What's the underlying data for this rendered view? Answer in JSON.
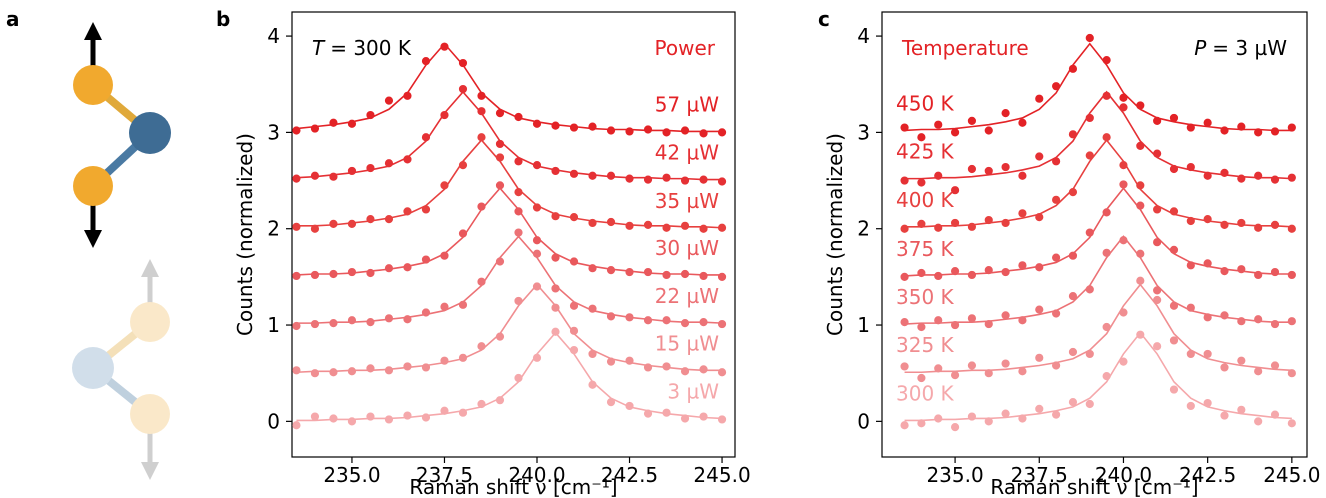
{
  "panel_labels": [
    "a",
    "b",
    "c"
  ],
  "chart_data": [
    {
      "type": "line",
      "annotation_left": {
        "symbol": "T",
        "text": "= 300 K"
      },
      "annotation_right": {
        "text": "Power"
      },
      "x_label": "Raman shift ν [cm⁻¹]",
      "y_label": "Counts (normalized)",
      "xlim": [
        233.38,
        245.35
      ],
      "ylim": [
        -0.37,
        4.25
      ],
      "xticks": [
        {
          "value": 235,
          "label": "235.0"
        },
        237.5,
        {
          "value": 240,
          "label": "240.0"
        },
        242.5,
        {
          "value": 245,
          "label": "245.0"
        }
      ],
      "yticks": [
        0,
        1,
        2,
        3,
        4
      ],
      "label_side": "right",
      "x": [
        233.5,
        234,
        234.5,
        235,
        235.5,
        236,
        236.5,
        237,
        237.5,
        238,
        238.5,
        239,
        239.5,
        240,
        240.5,
        241,
        241.5,
        242,
        242.5,
        243,
        243.5,
        244,
        244.5,
        245
      ],
      "series": [
        {
          "name": "3 µW",
          "color": "#f5a8ab",
          "values": [
            -0.04,
            0.05,
            0.03,
            0.0,
            0.05,
            0.02,
            0.06,
            0.04,
            0.11,
            0.09,
            0.18,
            0.22,
            0.45,
            0.66,
            0.93,
            0.74,
            0.38,
            0.2,
            0.16,
            0.08,
            0.09,
            0.03,
            0.05,
            0.02
          ],
          "fit": [
            0.01,
            0.01,
            0.02,
            0.02,
            0.03,
            0.03,
            0.04,
            0.06,
            0.08,
            0.11,
            0.15,
            0.24,
            0.41,
            0.7,
            0.92,
            0.7,
            0.41,
            0.24,
            0.15,
            0.11,
            0.08,
            0.06,
            0.04,
            0.03
          ]
        },
        {
          "name": "15 µW",
          "color": "#f08e91",
          "values": [
            0.53,
            0.5,
            0.51,
            0.52,
            0.55,
            0.53,
            0.57,
            0.56,
            0.63,
            0.66,
            0.78,
            0.88,
            1.25,
            1.4,
            1.18,
            0.94,
            0.7,
            0.62,
            0.63,
            0.56,
            0.57,
            0.52,
            0.54,
            0.51
          ],
          "fit": [
            0.51,
            0.52,
            0.52,
            0.53,
            0.53,
            0.54,
            0.56,
            0.58,
            0.61,
            0.65,
            0.74,
            0.91,
            1.2,
            1.42,
            1.2,
            0.91,
            0.74,
            0.65,
            0.61,
            0.58,
            0.56,
            0.54,
            0.53,
            0.53
          ]
        },
        {
          "name": "22 µW",
          "color": "#ec7276",
          "values": [
            0.99,
            1.01,
            1.02,
            1.05,
            1.03,
            1.07,
            1.06,
            1.13,
            1.19,
            1.21,
            1.45,
            1.66,
            1.96,
            1.74,
            1.38,
            1.2,
            1.17,
            1.09,
            1.08,
            1.05,
            1.05,
            1.02,
            1.03,
            1.01
          ],
          "fit": [
            1.02,
            1.02,
            1.03,
            1.03,
            1.04,
            1.06,
            1.08,
            1.11,
            1.15,
            1.24,
            1.41,
            1.7,
            1.92,
            1.7,
            1.41,
            1.24,
            1.15,
            1.11,
            1.08,
            1.06,
            1.04,
            1.03,
            1.03,
            1.02
          ]
        },
        {
          "name": "30 µW",
          "color": "#e9585c",
          "values": [
            1.51,
            1.52,
            1.53,
            1.55,
            1.54,
            1.59,
            1.6,
            1.68,
            1.72,
            1.95,
            2.23,
            2.45,
            2.18,
            1.88,
            1.7,
            1.66,
            1.59,
            1.57,
            1.55,
            1.55,
            1.52,
            1.53,
            1.51,
            1.5
          ],
          "fit": [
            1.52,
            1.53,
            1.53,
            1.54,
            1.56,
            1.58,
            1.61,
            1.65,
            1.74,
            1.91,
            2.2,
            2.42,
            2.2,
            1.91,
            1.74,
            1.65,
            1.61,
            1.58,
            1.56,
            1.54,
            1.53,
            1.53,
            1.52,
            1.52
          ]
        },
        {
          "name": "35 µW",
          "color": "#e7403f",
          "values": [
            2.02,
            2.0,
            2.05,
            2.05,
            2.1,
            2.1,
            2.18,
            2.2,
            2.45,
            2.66,
            2.95,
            2.74,
            2.38,
            2.22,
            2.13,
            2.12,
            2.06,
            2.07,
            2.03,
            2.04,
            2.01,
            2.03,
            2.0,
            2.01
          ],
          "fit": [
            2.03,
            2.03,
            2.04,
            2.06,
            2.08,
            2.11,
            2.15,
            2.24,
            2.41,
            2.7,
            2.92,
            2.7,
            2.41,
            2.24,
            2.15,
            2.11,
            2.08,
            2.06,
            2.04,
            2.03,
            2.03,
            2.02,
            2.02,
            2.01
          ]
        },
        {
          "name": "42 µW",
          "color": "#e53034",
          "values": [
            2.52,
            2.55,
            2.54,
            2.6,
            2.63,
            2.68,
            2.72,
            2.95,
            3.18,
            3.45,
            3.22,
            2.88,
            2.7,
            2.66,
            2.6,
            2.57,
            2.55,
            2.55,
            2.52,
            2.51,
            2.53,
            2.5,
            2.51,
            2.49
          ],
          "fit": [
            2.53,
            2.54,
            2.56,
            2.58,
            2.61,
            2.65,
            2.74,
            2.91,
            3.2,
            3.42,
            3.2,
            2.91,
            2.74,
            2.65,
            2.61,
            2.58,
            2.56,
            2.54,
            2.53,
            2.53,
            2.52,
            2.52,
            2.51,
            2.51
          ]
        },
        {
          "name": "57 µW",
          "color": "#e32226",
          "values": [
            3.02,
            3.04,
            3.1,
            3.09,
            3.18,
            3.33,
            3.38,
            3.74,
            3.89,
            3.72,
            3.38,
            3.2,
            3.16,
            3.09,
            3.07,
            3.05,
            3.06,
            3.02,
            3.01,
            3.03,
            3.0,
            3.02,
            2.99,
            3.0
          ],
          "fit": [
            3.04,
            3.06,
            3.08,
            3.11,
            3.15,
            3.24,
            3.41,
            3.7,
            3.92,
            3.7,
            3.41,
            3.24,
            3.15,
            3.11,
            3.08,
            3.06,
            3.04,
            3.03,
            3.03,
            3.02,
            3.02,
            3.01,
            3.01,
            3.01
          ]
        }
      ]
    },
    {
      "type": "line",
      "annotation_left": {
        "text": "Temperature"
      },
      "annotation_right": {
        "symbol": "P",
        "text": "= 3 µW"
      },
      "x_label": "Raman shift ν [cm⁻¹]",
      "y_label": "Counts (normalized)",
      "xlim": [
        232.83,
        245.45
      ],
      "ylim": [
        -0.37,
        4.25
      ],
      "xticks": [
        {
          "value": 235,
          "label": "235.0"
        },
        237.5,
        {
          "value": 240,
          "label": "240.0"
        },
        242.5,
        {
          "value": 245,
          "label": "245.0"
        }
      ],
      "yticks": [
        0,
        1,
        2,
        3,
        4
      ],
      "label_side": "left",
      "x": [
        233.5,
        234,
        234.5,
        235,
        235.5,
        236,
        236.5,
        237,
        237.5,
        238,
        238.5,
        239,
        239.5,
        240,
        240.5,
        241,
        241.5,
        242,
        242.5,
        243,
        243.5,
        244,
        244.5,
        245
      ],
      "series": [
        {
          "name": "300 K",
          "color": "#f5a8ab",
          "values": [
            -0.04,
            -0.02,
            0.03,
            -0.06,
            0.05,
            0.0,
            0.08,
            0.03,
            0.13,
            0.07,
            0.2,
            0.18,
            0.47,
            0.62,
            0.9,
            0.78,
            0.33,
            0.16,
            0.19,
            0.06,
            0.12,
            0.0,
            0.07,
            -0.02
          ],
          "fit": [
            0.01,
            0.01,
            0.02,
            0.02,
            0.03,
            0.03,
            0.04,
            0.06,
            0.08,
            0.11,
            0.15,
            0.24,
            0.41,
            0.7,
            0.92,
            0.7,
            0.41,
            0.24,
            0.15,
            0.11,
            0.08,
            0.06,
            0.04,
            0.03
          ]
        },
        {
          "name": "325 K",
          "color": "#f08e91",
          "values": [
            0.57,
            0.45,
            0.55,
            0.48,
            0.58,
            0.5,
            0.6,
            0.52,
            0.66,
            0.58,
            0.72,
            0.7,
            0.98,
            1.13,
            1.46,
            1.26,
            0.84,
            0.7,
            0.7,
            0.56,
            0.63,
            0.52,
            0.58,
            0.5
          ],
          "fit": [
            0.51,
            0.51,
            0.52,
            0.52,
            0.53,
            0.53,
            0.54,
            0.56,
            0.58,
            0.61,
            0.65,
            0.74,
            0.91,
            1.2,
            1.42,
            1.2,
            0.91,
            0.74,
            0.65,
            0.61,
            0.58,
            0.56,
            0.54,
            0.53
          ]
        },
        {
          "name": "350 K",
          "color": "#ec7276",
          "values": [
            1.03,
            0.98,
            1.05,
            1.0,
            1.07,
            1.01,
            1.1,
            1.05,
            1.16,
            1.12,
            1.3,
            1.37,
            1.75,
            1.88,
            1.74,
            1.36,
            1.2,
            1.18,
            1.08,
            1.1,
            1.04,
            1.06,
            1.01,
            1.04
          ],
          "fit": [
            1.01,
            1.02,
            1.02,
            1.03,
            1.03,
            1.04,
            1.06,
            1.08,
            1.11,
            1.15,
            1.24,
            1.41,
            1.7,
            1.92,
            1.7,
            1.41,
            1.24,
            1.15,
            1.11,
            1.08,
            1.06,
            1.04,
            1.03,
            1.03
          ]
        },
        {
          "name": "375 K",
          "color": "#e9585c",
          "values": [
            1.5,
            1.54,
            1.51,
            1.56,
            1.52,
            1.57,
            1.55,
            1.62,
            1.6,
            1.7,
            1.72,
            1.96,
            2.17,
            2.46,
            2.24,
            1.86,
            1.78,
            1.62,
            1.64,
            1.56,
            1.58,
            1.52,
            1.55,
            1.52
          ],
          "fit": [
            1.51,
            1.52,
            1.52,
            1.53,
            1.53,
            1.54,
            1.56,
            1.58,
            1.61,
            1.65,
            1.74,
            1.91,
            2.2,
            2.42,
            2.2,
            1.91,
            1.74,
            1.65,
            1.61,
            1.58,
            1.56,
            1.54,
            1.53,
            1.53
          ]
        },
        {
          "name": "400 K",
          "color": "#e7403f",
          "values": [
            2.0,
            2.05,
            2.01,
            2.06,
            2.02,
            2.09,
            2.06,
            2.16,
            2.12,
            2.3,
            2.38,
            2.76,
            2.95,
            2.66,
            2.45,
            2.2,
            2.18,
            2.08,
            2.1,
            2.04,
            2.06,
            2.01,
            2.04,
            2.0
          ],
          "fit": [
            2.02,
            2.02,
            2.03,
            2.03,
            2.04,
            2.06,
            2.08,
            2.11,
            2.15,
            2.24,
            2.41,
            2.7,
            2.92,
            2.7,
            2.41,
            2.24,
            2.15,
            2.11,
            2.08,
            2.06,
            2.04,
            2.03,
            2.03,
            2.02
          ]
        },
        {
          "name": "425 K",
          "color": "#e53034",
          "values": [
            2.5,
            2.48,
            2.55,
            2.4,
            2.62,
            2.6,
            2.64,
            2.55,
            2.75,
            2.7,
            2.98,
            3.15,
            3.38,
            3.26,
            2.86,
            2.78,
            2.62,
            2.64,
            2.55,
            2.58,
            2.52,
            2.55,
            2.51,
            2.53
          ],
          "fit": [
            2.52,
            2.52,
            2.53,
            2.53,
            2.54,
            2.56,
            2.58,
            2.61,
            2.65,
            2.74,
            2.91,
            3.2,
            3.42,
            3.2,
            2.91,
            2.74,
            2.65,
            2.61,
            2.58,
            2.56,
            2.54,
            2.53,
            2.53,
            2.52
          ]
        },
        {
          "name": "450 K",
          "color": "#e32226",
          "values": [
            3.05,
            2.95,
            3.08,
            3.0,
            3.12,
            3.02,
            3.2,
            3.1,
            3.35,
            3.48,
            3.66,
            3.98,
            3.75,
            3.36,
            3.28,
            3.12,
            3.15,
            3.05,
            3.1,
            3.02,
            3.06,
            3.0,
            3.01,
            3.05
          ],
          "fit": [
            3.02,
            3.03,
            3.03,
            3.04,
            3.06,
            3.08,
            3.11,
            3.15,
            3.24,
            3.41,
            3.7,
            3.92,
            3.7,
            3.41,
            3.24,
            3.15,
            3.11,
            3.08,
            3.06,
            3.04,
            3.03,
            3.03,
            3.02,
            3.02
          ]
        }
      ]
    }
  ]
}
